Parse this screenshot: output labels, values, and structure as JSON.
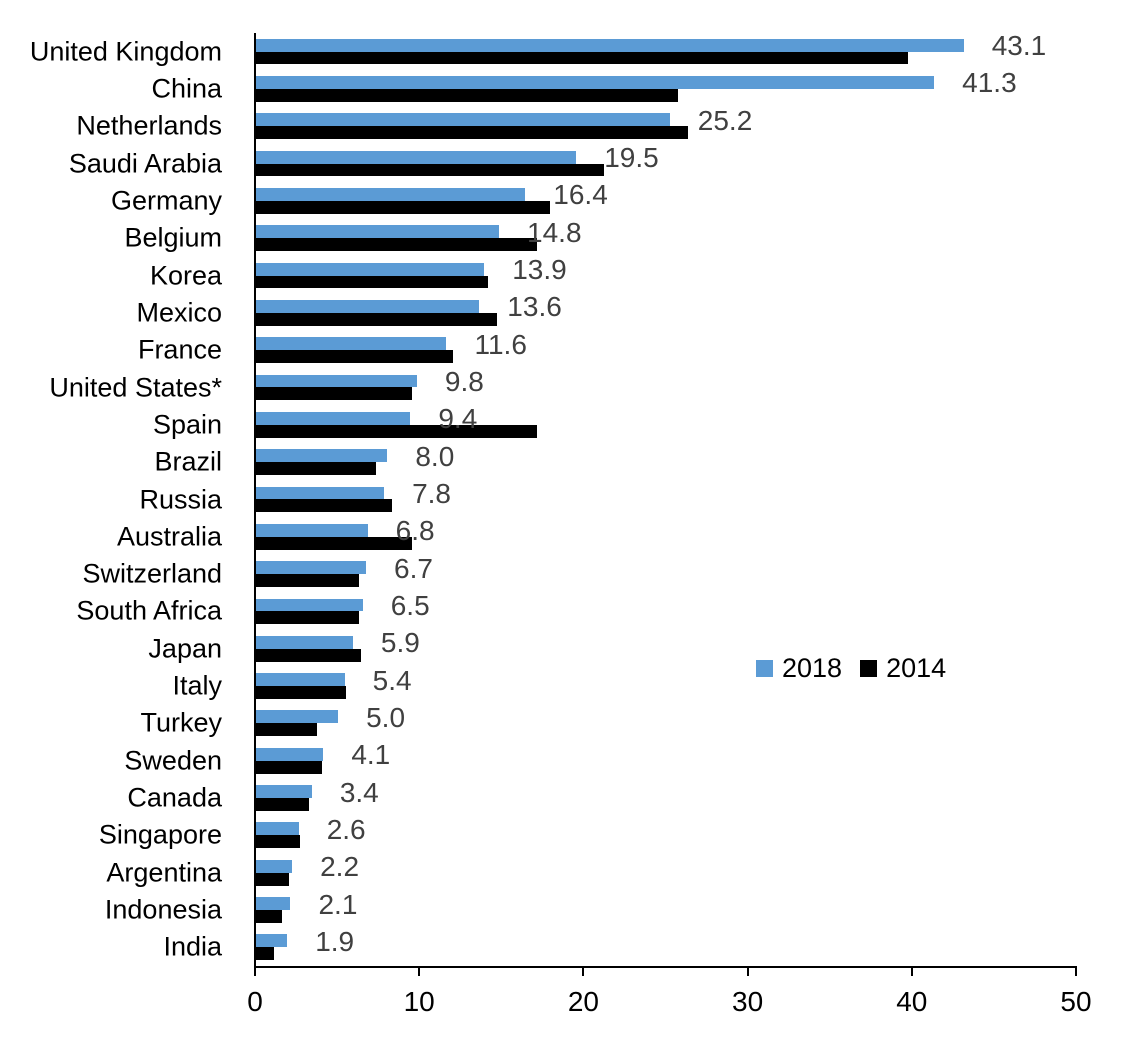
{
  "chart_data": {
    "type": "bar",
    "orientation": "horizontal",
    "title": "",
    "xlabel": "",
    "ylabel": "",
    "xlim": [
      0,
      50
    ],
    "xticks": [
      "0",
      "10",
      "20",
      "30",
      "40",
      "50"
    ],
    "grid": false,
    "legend_position": "middle-right",
    "categories": [
      "United Kingdom",
      "China",
      "Netherlands",
      "Saudi Arabia",
      "Germany",
      "Belgium",
      "Korea",
      "Mexico",
      "France",
      "United States*",
      "Spain",
      "Brazil",
      "Russia",
      "Australia",
      "Switzerland",
      "South Africa",
      "Japan",
      "Italy",
      "Turkey",
      "Sweden",
      "Canada",
      "Singapore",
      "Argentina",
      "Indonesia",
      "India"
    ],
    "series": [
      {
        "name": "2018",
        "color": "#5B9BD5",
        "values": [
          43.1,
          41.3,
          25.2,
          19.5,
          16.4,
          14.8,
          13.9,
          13.6,
          11.6,
          9.8,
          9.4,
          8.0,
          7.8,
          6.8,
          6.7,
          6.5,
          5.9,
          5.4,
          5.0,
          4.1,
          3.4,
          2.6,
          2.2,
          2.1,
          1.9
        ]
      },
      {
        "name": "2014",
        "color": "#000000",
        "values": [
          39.7,
          25.7,
          26.3,
          21.2,
          17.9,
          17.1,
          14.1,
          14.7,
          12.0,
          9.5,
          17.1,
          7.3,
          8.3,
          9.5,
          6.3,
          6.3,
          6.4,
          5.5,
          3.7,
          4.0,
          3.2,
          2.7,
          2.0,
          1.6,
          1.1
        ]
      }
    ],
    "data_labels": [
      "43.1",
      "41.3",
      "25.2",
      "19.5",
      "16.4",
      "14.8",
      "13.9",
      "13.6",
      "11.6",
      "9.8",
      "9.4",
      "8.0",
      "7.8",
      "6.8",
      "6.7",
      "6.5",
      "5.9",
      "5.4",
      "5.0",
      "4.1",
      "3.4",
      "2.6",
      "2.2",
      "2.1",
      "1.9"
    ],
    "data_label_series": "2018",
    "data_label_color": "#404040",
    "axis_color": "#000000",
    "legend": {
      "items": [
        {
          "label": "2018",
          "color": "#5B9BD5"
        },
        {
          "label": "2014",
          "color": "#000000"
        }
      ]
    }
  }
}
